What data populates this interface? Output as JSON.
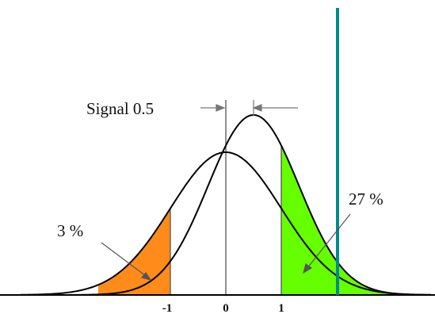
{
  "annotations": {
    "signal_label": "Signal 0.5",
    "left_tail_pct": "3 %",
    "right_tail_pct": "27 %"
  },
  "axis": {
    "ticks": [
      {
        "value": -1,
        "label": "-1"
      },
      {
        "value": 0,
        "label": "0"
      },
      {
        "value": 1,
        "label": "1"
      }
    ]
  },
  "model": {
    "signal_shift": 0.5,
    "lower_threshold": -1,
    "upper_threshold": 1,
    "left_tail_fraction": 0.03,
    "right_tail_fraction": 0.27
  },
  "colors": {
    "left_tail_fill": "#ff8c1a",
    "right_tail_fill": "#66ff00",
    "cut_line": "#008b8b",
    "curve": "#000000"
  }
}
